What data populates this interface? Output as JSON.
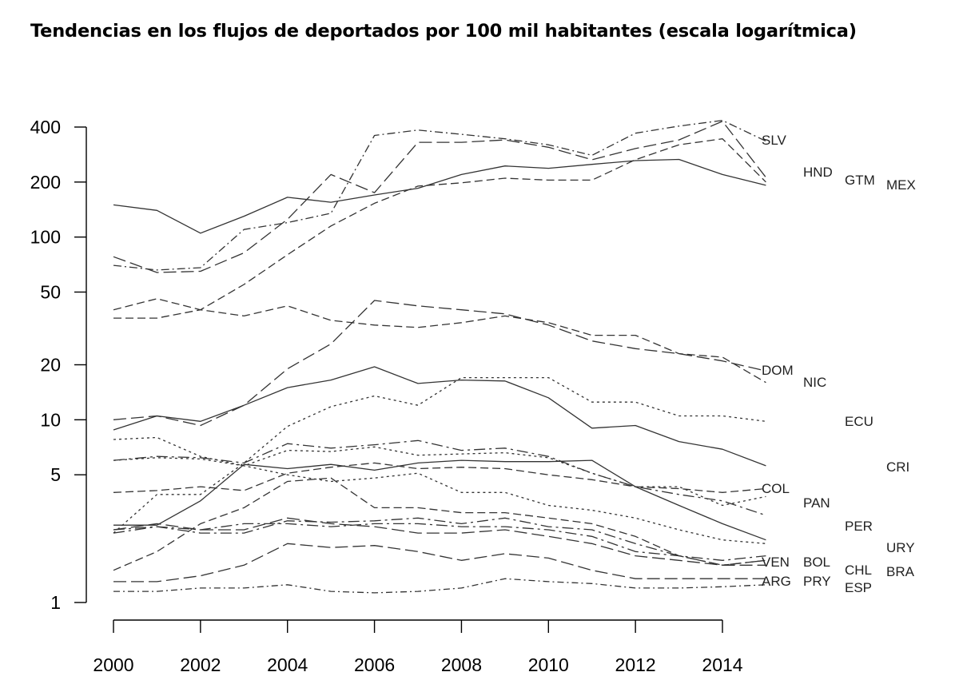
{
  "chart_data": {
    "type": "line",
    "title": "Tendencias en los flujos de deportados por 100 mil habitantes (escala logarítmica)",
    "xlabel": "",
    "ylabel": "",
    "y_scale": "log",
    "xlim": [
      2000,
      2015
    ],
    "ylim": [
      1,
      450
    ],
    "x_ticks": [
      2000,
      2002,
      2004,
      2006,
      2008,
      2010,
      2012,
      2014
    ],
    "x_tick_labels": [
      "2000",
      "2002",
      "2004",
      "2006",
      "2008",
      "2010",
      "2012",
      "2014"
    ],
    "y_ticks": [
      1,
      5,
      10,
      20,
      50,
      100,
      200,
      400
    ],
    "y_tick_labels": [
      "1",
      "5",
      "10",
      "20",
      "50",
      "100",
      "200",
      "400"
    ],
    "grid": false,
    "legend": "none",
    "x": [
      2000,
      2001,
      2002,
      2003,
      2004,
      2005,
      2006,
      2007,
      2008,
      2009,
      2010,
      2011,
      2012,
      2013,
      2014,
      2015
    ],
    "series": [
      {
        "name": "SLV",
        "dash": "10,4,2,4",
        "values": [
          70,
          66,
          68,
          110,
          120,
          135,
          360,
          385,
          365,
          345,
          320,
          280,
          370,
          405,
          435,
          335
        ]
      },
      {
        "name": "HND",
        "dash": "16,6",
        "values": [
          78,
          64,
          65,
          82,
          125,
          220,
          175,
          330,
          330,
          340,
          310,
          265,
          305,
          340,
          430,
          212
        ]
      },
      {
        "name": "GTM",
        "dash": "10,5",
        "values": [
          36,
          36,
          40,
          55,
          80,
          115,
          153,
          190,
          198,
          210,
          205,
          205,
          265,
          320,
          345,
          200
        ]
      },
      {
        "name": "MEX",
        "dash": "",
        "values": [
          150,
          140,
          105,
          130,
          165,
          155,
          170,
          185,
          220,
          245,
          238,
          250,
          262,
          266,
          220,
          192
        ]
      },
      {
        "name": "DOM",
        "dash": "10,5",
        "values": [
          40,
          46,
          40,
          37,
          42,
          35,
          33,
          32,
          34,
          37,
          34,
          29,
          29,
          23,
          22,
          16
        ]
      },
      {
        "name": "NIC",
        "dash": "16,6",
        "values": [
          10,
          10.5,
          9.3,
          12,
          19,
          26,
          45,
          42,
          40,
          38,
          33,
          27,
          24.5,
          23,
          21,
          18.5
        ]
      },
      {
        "name": "ECU",
        "dash": "3,4",
        "values": [
          2.4,
          3.9,
          3.9,
          5.8,
          9.2,
          11.8,
          13.5,
          12,
          17,
          17,
          17,
          12.5,
          12.5,
          10.5,
          10.5,
          9.8
        ]
      },
      {
        "name": "CRI",
        "dash": "",
        "values": [
          8.8,
          10.5,
          9.8,
          12,
          15,
          16.5,
          19.5,
          15.8,
          16.5,
          16.3,
          13.2,
          9,
          9.3,
          7.6,
          6.9,
          5.6
        ]
      },
      {
        "name": "COL",
        "dash": "10,5",
        "values": [
          4,
          4.1,
          4.3,
          4.1,
          5.1,
          5.5,
          5.8,
          5.4,
          5.5,
          5.4,
          5,
          4.7,
          4.3,
          4.2,
          4,
          4.2
        ]
      },
      {
        "name": "PAN",
        "dash": "3,4",
        "values": [
          7.8,
          8,
          6.3,
          5.6,
          5,
          4.6,
          4.8,
          5.1,
          4,
          4,
          3.4,
          3.2,
          2.9,
          2.5,
          2.2,
          2.1
        ]
      },
      {
        "name": "PER",
        "dash": "14,5,3,5",
        "values": [
          6,
          6.3,
          6.2,
          5.8,
          7.4,
          7,
          7.3,
          7.7,
          6.8,
          7,
          6.3,
          5.1,
          4.3,
          3.9,
          3.6,
          3
        ]
      },
      {
        "name": "URY",
        "dash": "3,4",
        "values": [
          6,
          6.2,
          6.1,
          5.6,
          6.8,
          6.7,
          7.1,
          6.4,
          6.5,
          6.6,
          6.2,
          5.1,
          4.3,
          4.3,
          3.4,
          3.8
        ]
      },
      {
        "name": "VEN",
        "dash": "16,6",
        "values": [
          2.5,
          2.7,
          2.5,
          2.5,
          2.9,
          2.7,
          2.6,
          2.4,
          2.4,
          2.5,
          2.3,
          2.1,
          1.8,
          1.7,
          1.6,
          1.6
        ]
      },
      {
        "name": "BOL",
        "dash": "10,5",
        "values": [
          1.5,
          1.9,
          2.7,
          3.3,
          4.6,
          4.8,
          3.3,
          3.3,
          3.1,
          3.1,
          2.9,
          2.7,
          2.3,
          1.8,
          1.6,
          1.7
        ]
      },
      {
        "name": "CHL",
        "dash": "14,5,3,5",
        "values": [
          2.5,
          2.6,
          2.5,
          2.7,
          2.7,
          2.6,
          2.7,
          2.7,
          2.6,
          2.6,
          2.5,
          2.3,
          1.9,
          1.8,
          1.7,
          1.8
        ]
      },
      {
        "name": "BRA",
        "dash": "14,5,3,5",
        "values": [
          2.4,
          2.6,
          2.4,
          2.4,
          2.8,
          2.75,
          2.8,
          2.9,
          2.7,
          2.9,
          2.6,
          2.5,
          2.1,
          1.8,
          1.6,
          1.7
        ]
      },
      {
        "name": "ARG",
        "dash": "",
        "values": [
          2.65,
          2.65,
          3.6,
          5.7,
          5.4,
          5.7,
          5.3,
          5.8,
          6,
          5.9,
          5.9,
          6,
          4.3,
          3.4,
          2.7,
          2.2
        ]
      },
      {
        "name": "PRY",
        "dash": "16,6",
        "values": [
          1.3,
          1.3,
          1.4,
          1.6,
          2.1,
          2,
          2.05,
          1.9,
          1.7,
          1.85,
          1.75,
          1.5,
          1.35,
          1.35,
          1.35,
          1.35
        ]
      },
      {
        "name": "ESP",
        "dash": "8,4,2,4",
        "values": [
          1.15,
          1.15,
          1.2,
          1.2,
          1.25,
          1.15,
          1.13,
          1.15,
          1.2,
          1.35,
          1.3,
          1.27,
          1.2,
          1.2,
          1.22,
          1.25
        ]
      }
    ],
    "annotations": [
      {
        "text": "SLV",
        "series": "SLV"
      },
      {
        "text": "HND",
        "series": "HND"
      },
      {
        "text": "GTM",
        "series": "GTM"
      },
      {
        "text": "MEX",
        "series": "MEX"
      },
      {
        "text": "DOM",
        "series": "DOM"
      },
      {
        "text": "NIC",
        "series": "NIC"
      },
      {
        "text": "ECU",
        "series": "ECU"
      },
      {
        "text": "CRI",
        "series": "CRI"
      },
      {
        "text": "COL",
        "series": "COL"
      },
      {
        "text": "PAN",
        "series": "PAN"
      },
      {
        "text": "PER",
        "series": "PER"
      },
      {
        "text": "URY",
        "series": "URY"
      },
      {
        "text": "VEN",
        "series": "VEN"
      },
      {
        "text": "BOL",
        "series": "BOL"
      },
      {
        "text": "CHL",
        "series": "CHL"
      },
      {
        "text": "BRA",
        "series": "BRA"
      },
      {
        "text": "ARG",
        "series": "ARG"
      },
      {
        "text": "PRY",
        "series": "PRY"
      },
      {
        "text": "ESP",
        "series": "ESP"
      }
    ],
    "line_color": "#333333"
  }
}
